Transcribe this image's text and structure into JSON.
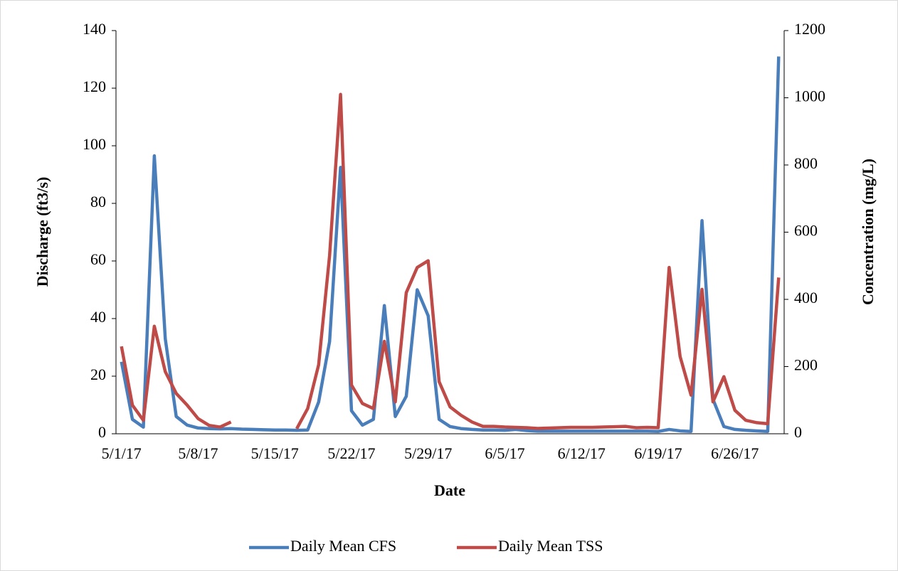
{
  "chart_data": {
    "type": "line",
    "x_label": "Date",
    "y_label": "Discharge (ft3/s)",
    "y2_label": "Concentration (mg/L)",
    "categories": [
      "5/1/17",
      null,
      null,
      null,
      null,
      null,
      null,
      "5/8/17",
      null,
      null,
      null,
      null,
      null,
      null,
      "5/15/17",
      null,
      null,
      null,
      null,
      null,
      null,
      "5/22/17",
      null,
      null,
      null,
      null,
      null,
      null,
      "5/29/17",
      null,
      null,
      null,
      null,
      null,
      null,
      "6/5/17",
      null,
      null,
      null,
      null,
      null,
      null,
      "6/12/17",
      null,
      null,
      null,
      null,
      null,
      null,
      "6/19/17",
      null,
      null,
      null,
      null,
      null,
      null,
      "6/26/17",
      null,
      null,
      null,
      null
    ],
    "series": [
      {
        "name": "Daily Mean CFS",
        "color": "#4a7ebb",
        "axis": "y",
        "values": [
          25,
          5,
          2.3,
          96.5,
          33,
          6,
          3,
          2,
          1.8,
          1.7,
          1.8,
          1.6,
          1.5,
          1.4,
          1.3,
          1.3,
          1.2,
          1.3,
          11,
          32,
          92.5,
          8,
          3,
          5,
          44.5,
          6,
          13,
          50,
          41,
          5,
          2.5,
          1.8,
          1.5,
          1.3,
          1.3,
          1.2,
          1.5,
          1.1,
          0.9,
          0.9,
          0.9,
          0.9,
          0.9,
          0.9,
          0.9,
          0.9,
          0.9,
          0.9,
          0.9,
          0.8,
          1.5,
          1,
          0.8,
          74,
          12,
          2.5,
          1.5,
          1.2,
          1,
          0.8,
          131
        ]
      },
      {
        "name": "Daily Mean TSS",
        "color": "#be4b48",
        "axis": "y2",
        "values": [
          260,
          85,
          40,
          320,
          185,
          120,
          85,
          45,
          25,
          20,
          35,
          null,
          null,
          null,
          null,
          null,
          15,
          75,
          205,
          530,
          1010,
          145,
          90,
          75,
          275,
          95,
          420,
          495,
          515,
          155,
          80,
          55,
          35,
          22,
          22,
          20,
          19,
          18,
          16,
          17,
          18,
          19,
          19,
          19,
          20,
          21,
          22,
          18,
          19,
          18,
          495,
          230,
          115,
          430,
          95,
          170,
          70,
          40,
          33,
          30,
          465
        ]
      }
    ],
    "ylim": [
      0,
      140
    ],
    "yticks": [
      0,
      20,
      40,
      60,
      80,
      100,
      120,
      140
    ],
    "y2lim": [
      0,
      1200
    ],
    "y2ticks": [
      0,
      200,
      400,
      600,
      800,
      1000,
      1200
    ],
    "grid": false,
    "legend": "bottom"
  }
}
